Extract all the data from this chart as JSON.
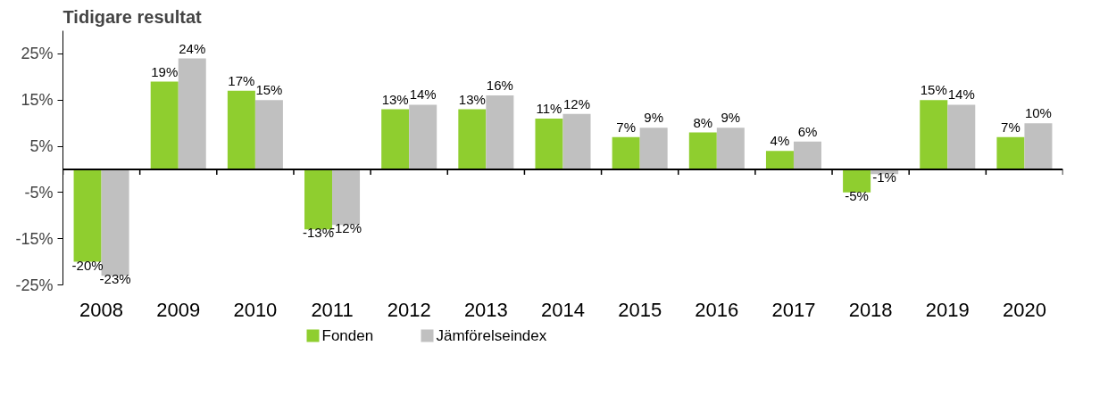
{
  "chart_data": {
    "type": "bar",
    "title": "Tidigare resultat",
    "categories": [
      "2008",
      "2009",
      "2010",
      "2011",
      "2012",
      "2013",
      "2014",
      "2015",
      "2016",
      "2017",
      "2018",
      "2019",
      "2020"
    ],
    "series": [
      {
        "name": "Fonden",
        "color": "#8fce2f",
        "values": [
          -20,
          19,
          17,
          -13,
          13,
          13,
          11,
          7,
          8,
          4,
          -5,
          15,
          7
        ],
        "value_labels": [
          "-20%",
          "19%",
          "17%",
          "-13%",
          "13%",
          "13%",
          "11%",
          "7%",
          "8%",
          "4%",
          "-5%",
          "15%",
          "7%"
        ]
      },
      {
        "name": "Jämförelseindex",
        "color": "#c0c0c0",
        "values": [
          -23,
          24,
          15,
          -12,
          14,
          16,
          12,
          9,
          9,
          6,
          -1,
          14,
          10
        ],
        "value_labels": [
          "-23%",
          "24%",
          "15%",
          "-12%",
          "14%",
          "16%",
          "12%",
          "9%",
          "9%",
          "6%",
          "-1%",
          "14%",
          "10%"
        ]
      }
    ],
    "ylim": [
      -25,
      30
    ],
    "yticks": [
      {
        "value": 25,
        "label": "25%"
      },
      {
        "value": 15,
        "label": "15%"
      },
      {
        "value": 5,
        "label": "5%"
      },
      {
        "value": -5,
        "label": "-5%"
      },
      {
        "value": -15,
        "label": "-15%"
      },
      {
        "value": -25,
        "label": "-25%"
      }
    ],
    "data_labels": true,
    "grid": false,
    "legend": "bottom"
  }
}
